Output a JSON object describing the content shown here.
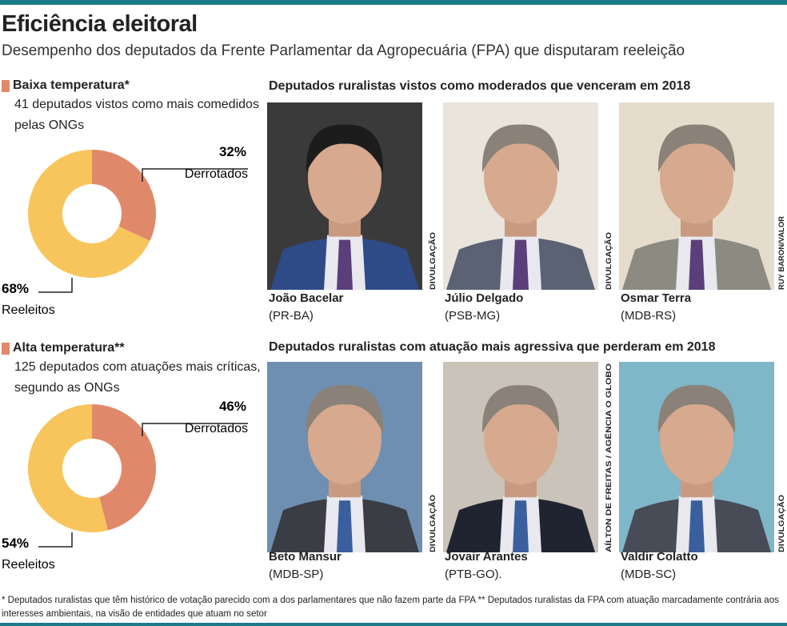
{
  "header": {
    "title": "Eficiência eleitoral",
    "subtitle": "Desempenho dos deputados da Frente Parlamentar da Agropecuária (FPA) que disputaram reeleição"
  },
  "chart_data": [
    {
      "type": "pie",
      "donut": true,
      "title": "Baixa temperatura*",
      "subtitle": "41 deputados vistos como mais comedidos pelas ONGs",
      "categories": [
        "Derrotados",
        "Reeleitos"
      ],
      "values": [
        32,
        68
      ],
      "value_labels": [
        "32%",
        "68%"
      ],
      "colors": [
        "#e0896a",
        "#f8c55c"
      ]
    },
    {
      "type": "pie",
      "donut": true,
      "title": "Alta temperatura**",
      "subtitle": "125 deputados com atuações mais críticas, segundo as ONGs",
      "categories": [
        "Derrotados",
        "Reeleitos"
      ],
      "values": [
        46,
        54
      ],
      "value_labels": [
        "46%",
        "54%"
      ],
      "colors": [
        "#e0896a",
        "#f8c55c"
      ]
    }
  ],
  "photo_groups": [
    {
      "title": "Deputados ruralistas vistos como moderados que venceram em 2018",
      "people": [
        {
          "name": "João Bacelar",
          "party": "(PR-BA)",
          "credit": "DIVULGAÇÃO"
        },
        {
          "name": "Júlio Delgado",
          "party": "(PSB-MG)",
          "credit": "DIVULGAÇÃO"
        },
        {
          "name": "Osmar Terra",
          "party": "(MDB-RS)",
          "credit": "RUY BARON/VALOR"
        }
      ]
    },
    {
      "title": "Deputados ruralistas com atuação mais agressiva que perderam em 2018",
      "people": [
        {
          "name": "Beto Mansur",
          "party": "(MDB-SP)",
          "credit": "DIVULGAÇÃO"
        },
        {
          "name": "Jovair Arantes",
          "party": "(PTB-GO).",
          "credit": "AÍLTON DE FREITAS / AGÊNCIA O GLOBO"
        },
        {
          "name": "Valdir Colatto",
          "party": "(MDB-SC)",
          "credit": "DIVULGAÇÃO"
        }
      ]
    }
  ],
  "footnote": "* Deputados ruralistas que têm histórico de votação parecido com a dos parlamentares que não fazem parte da FPA ** Deputados ruralistas da FPA com atuação marcadamente contrária aos interesses ambientais, na visão de entidades que atuam no setor"
}
